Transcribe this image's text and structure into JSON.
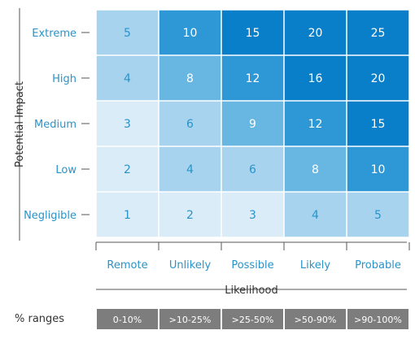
{
  "chart_data": {
    "type": "heatmap",
    "xlabel": "Likelihood",
    "ylabel": "Potential Impact",
    "x_categories": [
      "Remote",
      "Unlikely",
      "Possible",
      "Likely",
      "Probable"
    ],
    "y_categories": [
      "Extreme",
      "High",
      "Medium",
      "Low",
      "Negligible"
    ],
    "values": [
      [
        5,
        10,
        15,
        20,
        25
      ],
      [
        4,
        8,
        12,
        16,
        20
      ],
      [
        3,
        6,
        9,
        12,
        15
      ],
      [
        2,
        4,
        6,
        8,
        10
      ],
      [
        1,
        2,
        3,
        4,
        5
      ]
    ],
    "ranges_label": "% ranges",
    "ranges": [
      "0-10%",
      ">10-25%",
      ">25-50%",
      ">50-90%",
      ">90-100%"
    ]
  },
  "colors": {
    "label_text": "#2a93c9",
    "axis_line": "#555555",
    "range_box": "#7d7d7d",
    "cell_scale": [
      "#d9ecf8",
      "#a7d3ef",
      "#68b6e2",
      "#2e97d6",
      "#0a7fc9"
    ]
  }
}
